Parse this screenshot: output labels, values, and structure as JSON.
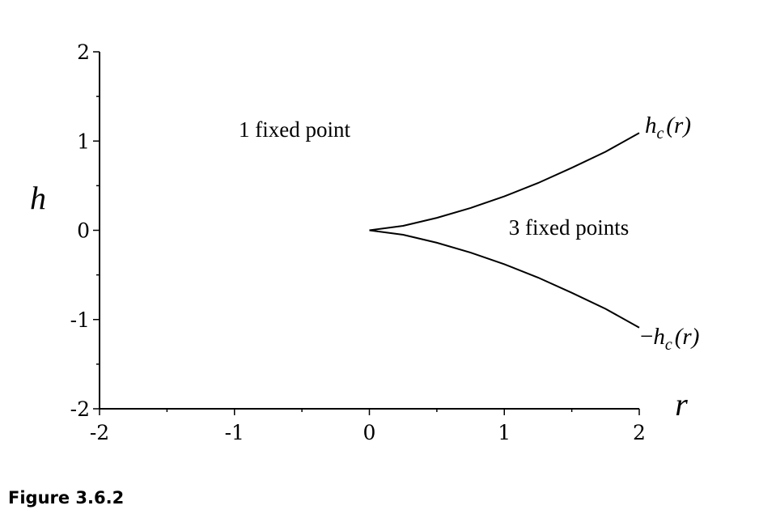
{
  "caption": "Figure 3.6.2",
  "chart_data": {
    "type": "line",
    "xlabel": "r",
    "ylabel": "h",
    "xlim": [
      -2,
      2
    ],
    "ylim": [
      -2,
      2
    ],
    "xticks": [
      -2,
      -1,
      0,
      1,
      2
    ],
    "yticks": [
      -2,
      -1,
      0,
      1,
      2
    ],
    "xtick_labels": [
      "-2",
      "-1",
      "0",
      "1",
      "2"
    ],
    "ytick_labels": [
      "-2",
      "-1",
      "0",
      "1",
      "2"
    ],
    "grid": false,
    "series": [
      {
        "name": "h_c(r)",
        "x": [
          0,
          0.25,
          0.5,
          0.75,
          1.0,
          1.25,
          1.5,
          1.75,
          2.0
        ],
        "y": [
          0,
          0.05,
          0.14,
          0.25,
          0.38,
          0.53,
          0.7,
          0.88,
          1.09
        ]
      },
      {
        "name": "-h_c(r)",
        "x": [
          0,
          0.25,
          0.5,
          0.75,
          1.0,
          1.25,
          1.5,
          1.75,
          2.0
        ],
        "y": [
          0,
          -0.05,
          -0.14,
          -0.25,
          -0.38,
          -0.53,
          -0.7,
          -0.88,
          -1.09
        ]
      }
    ],
    "annotations": [
      {
        "text": "1 fixed point",
        "x": -1.0,
        "y": 1.1
      },
      {
        "text": "3 fixed points",
        "x": 1.0,
        "y": 0.0
      }
    ],
    "curve_labels": [
      {
        "main": "h",
        "sub": "c",
        "suffix": "(r)",
        "prefix": ""
      },
      {
        "main": "h",
        "sub": "c",
        "suffix": "(r)",
        "prefix": "−"
      }
    ]
  }
}
